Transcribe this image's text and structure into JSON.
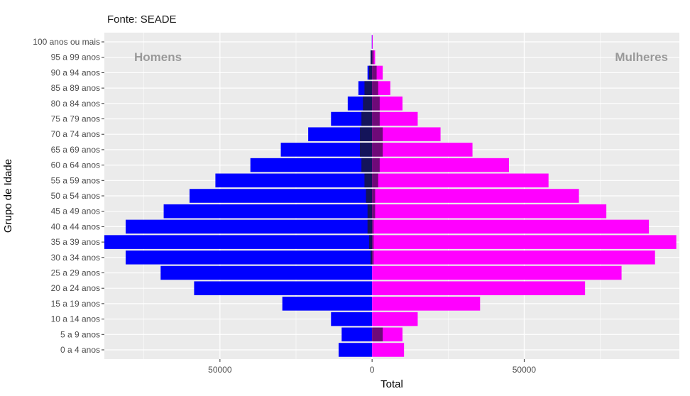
{
  "caption": "Fonte: SEADE",
  "chart_data": {
    "type": "bar",
    "orientation": "horizontal",
    "title": "",
    "xlabel": "Total",
    "ylabel": "Grupo de Idade",
    "xlim": [
      -88000,
      101000
    ],
    "x_ticks": [
      -50000,
      0,
      50000
    ],
    "x_tick_labels": [
      "50000",
      "0",
      "50000"
    ],
    "grid": true,
    "annotations": {
      "left": "Homens",
      "right": "Mulheres"
    },
    "colors": {
      "homens": "#0000ff",
      "mulheres": "#ff00ff",
      "homens_overlay": "#14145a",
      "mulheres_overlay": "#6e0a78",
      "panel": "#ebebeb",
      "annotation": "#999999"
    },
    "categories": [
      "0 a 4 anos",
      "5 a 9 anos",
      "10 a 14 anos",
      "15 a 19 anos",
      "20 a 24 anos",
      "25 a 29 anos",
      "30 a 34 anos",
      "35 a 39 anos",
      "40 a 44 anos",
      "45 a 49 anos",
      "50 a 54 anos",
      "55 a 59 anos",
      "60 a 64 anos",
      "65 a 69 anos",
      "70 a 74 anos",
      "75 a 79 anos",
      "80 a 84 anos",
      "85 a 89 anos",
      "90 a 94 anos",
      "95 a 99 anos",
      "100 anos ou mais"
    ],
    "series": [
      {
        "name": "Homens",
        "values": [
          -11000,
          -10000,
          -13500,
          -29500,
          -58500,
          -69500,
          -81000,
          -88000,
          -81000,
          -68500,
          -60000,
          -51500,
          -40000,
          -30000,
          -21000,
          -13500,
          -8000,
          -4500,
          -1500,
          -500,
          -100
        ]
      },
      {
        "name": "Mulheres",
        "values": [
          10500,
          10000,
          15000,
          35500,
          70000,
          82000,
          93000,
          100000,
          91000,
          77000,
          68000,
          58000,
          45000,
          33000,
          22500,
          15000,
          10000,
          6000,
          3500,
          1000,
          200
        ]
      },
      {
        "values": [
          0,
          0,
          0,
          0,
          0,
          0,
          -500,
          -1000,
          -1500,
          -1500,
          -2000,
          -2500,
          -3500,
          -4000,
          -4000,
          -3500,
          -3000,
          -2500,
          -1000,
          -500,
          0
        ]
      },
      {
        "values": [
          0,
          3500,
          0,
          0,
          0,
          0,
          500,
          500,
          500,
          1000,
          1000,
          2000,
          2500,
          3500,
          3500,
          2500,
          2500,
          2000,
          1500,
          500,
          0
        ]
      }
    ]
  }
}
